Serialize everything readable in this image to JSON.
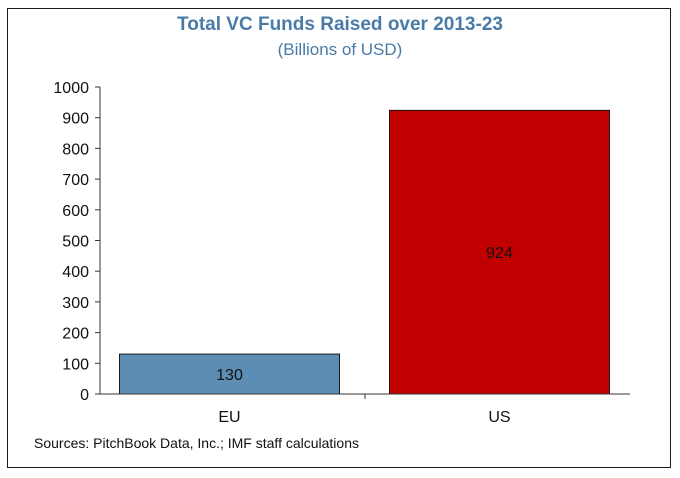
{
  "chart_data": {
    "type": "bar",
    "title": "Total VC Funds Raised over 2013-23",
    "subtitle": "(Billions of USD)",
    "categories": [
      "EU",
      "US"
    ],
    "values": [
      130,
      924
    ],
    "data_labels": [
      "130",
      "924"
    ],
    "ylim": [
      0,
      1000
    ],
    "yticks": [
      0,
      100,
      200,
      300,
      400,
      500,
      600,
      700,
      800,
      900,
      1000
    ],
    "xlabel": "",
    "ylabel": "",
    "grid": false,
    "legend": "none",
    "colors": [
      "#5b8db5",
      "#c00000"
    ],
    "edge_color": "#1a1a1a"
  },
  "source": "Sources: PitchBook Data, Inc.; IMF staff calculations"
}
